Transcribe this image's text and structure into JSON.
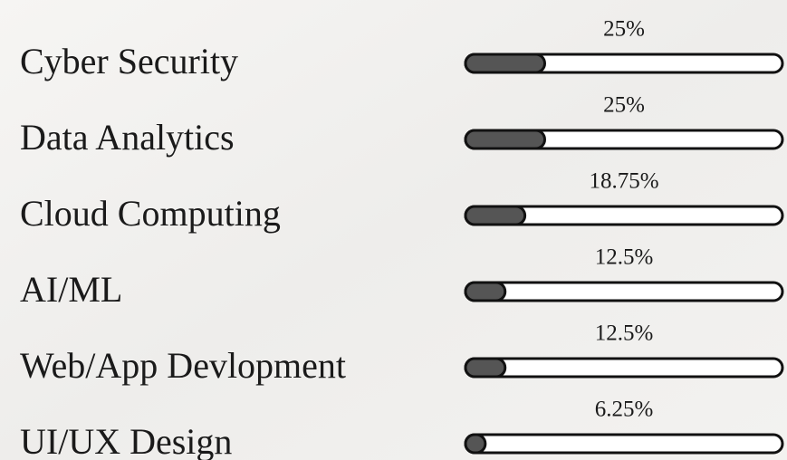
{
  "chart_data": {
    "type": "bar",
    "categories": [
      "Cyber Security",
      "Data Analytics",
      "Cloud Computing",
      "AI/ML",
      "Web/App Devlopment",
      "UI/UX Design"
    ],
    "values": [
      25,
      25,
      18.75,
      12.5,
      12.5,
      6.25
    ],
    "value_labels": [
      "25%",
      "25%",
      "18.75%",
      "12.5%",
      "12.5%",
      "6.25%"
    ],
    "xlim": [
      0,
      100
    ],
    "color": "#555555"
  }
}
